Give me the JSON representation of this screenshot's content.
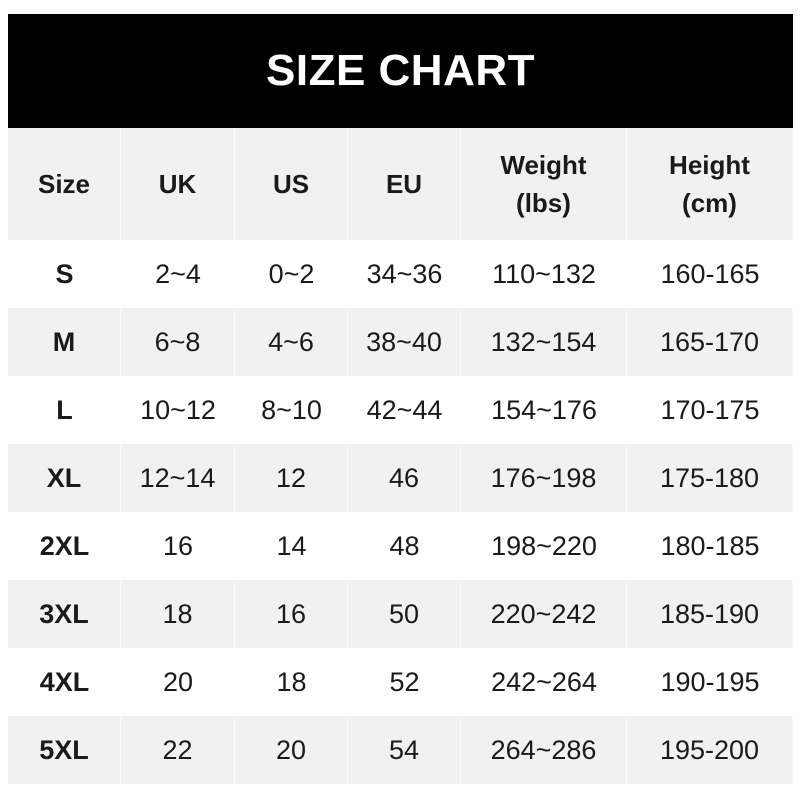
{
  "title": "SIZE CHART",
  "headers": [
    "Size",
    "UK",
    "US",
    "EU",
    "Weight\n(lbs)",
    "Height\n(cm)"
  ],
  "header_lines": [
    [
      "Size"
    ],
    [
      "UK"
    ],
    [
      "US"
    ],
    [
      "EU"
    ],
    [
      "Weight",
      "(lbs)"
    ],
    [
      "Height",
      "(cm)"
    ]
  ],
  "rows": [
    [
      "S",
      "2~4",
      "0~2",
      "34~36",
      "110~132",
      "160-165"
    ],
    [
      "M",
      "6~8",
      "4~6",
      "38~40",
      "132~154",
      "165-170"
    ],
    [
      "L",
      "10~12",
      "8~10",
      "42~44",
      "154~176",
      "170-175"
    ],
    [
      "XL",
      "12~14",
      "12",
      "46",
      "176~198",
      "175-180"
    ],
    [
      "2XL",
      "16",
      "14",
      "48",
      "198~220",
      "180-185"
    ],
    [
      "3XL",
      "18",
      "16",
      "50",
      "220~242",
      "185-190"
    ],
    [
      "4XL",
      "20",
      "18",
      "52",
      "242~264",
      "190-195"
    ],
    [
      "5XL",
      "22",
      "20",
      "54",
      "264~286",
      "195-200"
    ]
  ],
  "colors": {
    "header_bg": "#000000",
    "stripe": "#f1f1f1",
    "text": "#1a1a1a"
  }
}
